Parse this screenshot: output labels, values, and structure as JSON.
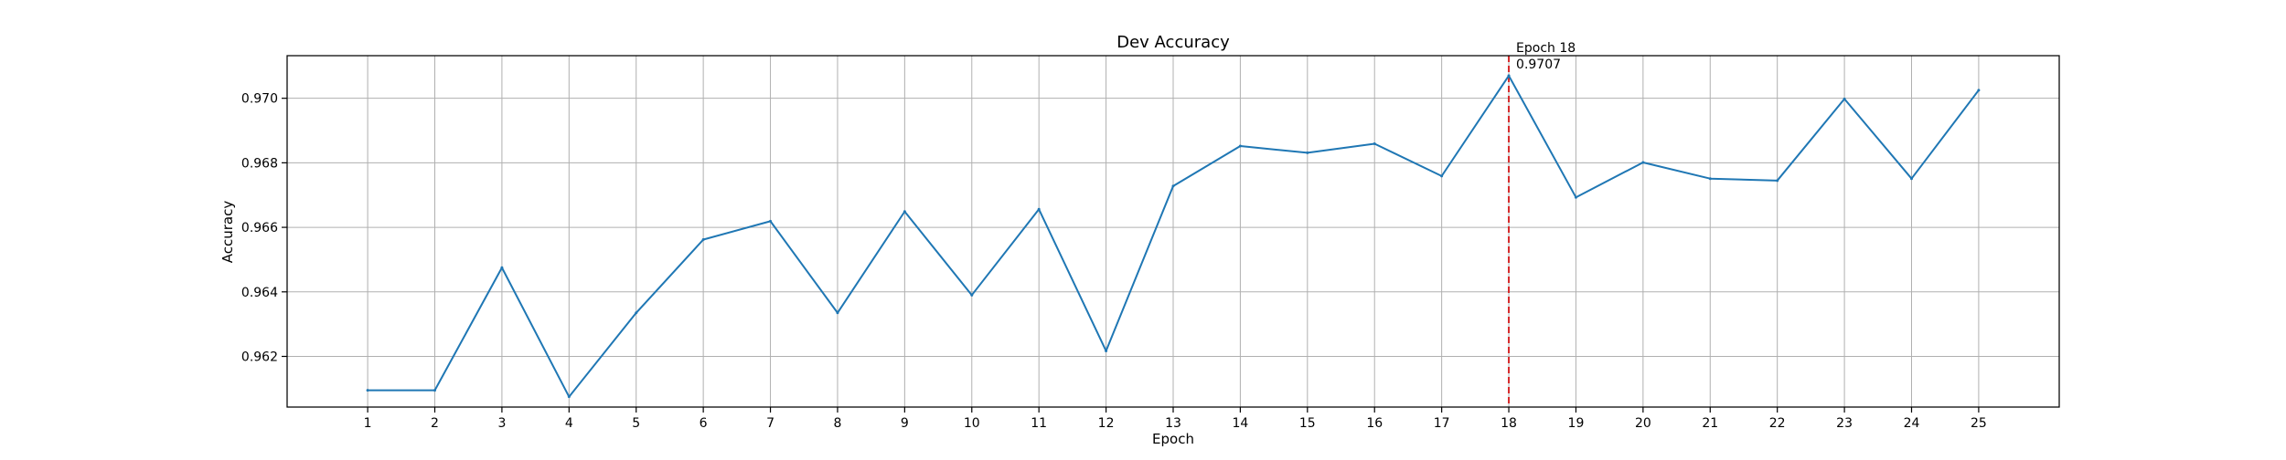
{
  "chart_data": {
    "type": "line",
    "title": "Dev Accuracy",
    "xlabel": "Epoch",
    "ylabel": "Accuracy",
    "x": [
      1,
      2,
      3,
      4,
      5,
      6,
      7,
      8,
      9,
      10,
      11,
      12,
      13,
      14,
      15,
      16,
      17,
      18,
      19,
      20,
      21,
      22,
      23,
      24,
      25
    ],
    "series": [
      {
        "values": [
          0.96095,
          0.96095,
          0.96475,
          0.96075,
          0.96335,
          0.96562,
          0.96619,
          0.96335,
          0.96649,
          0.9639,
          0.96656,
          0.96217,
          0.96728,
          0.96852,
          0.96831,
          0.96859,
          0.96759,
          0.9707,
          0.96693,
          0.96801,
          0.96751,
          0.96745,
          0.96998,
          0.96751,
          0.97025
        ],
        "color": "#1f77b4"
      }
    ],
    "xlim": [
      -0.2,
      26.2
    ],
    "ylim": [
      0.96043,
      0.97132
    ],
    "xticks": [
      1,
      2,
      3,
      4,
      5,
      6,
      7,
      8,
      9,
      10,
      11,
      12,
      13,
      14,
      15,
      16,
      17,
      18,
      19,
      20,
      21,
      22,
      23,
      24,
      25
    ],
    "xtick_labels": [
      "1",
      "2",
      "3",
      "4",
      "5",
      "6",
      "7",
      "8",
      "9",
      "10",
      "11",
      "12",
      "13",
      "14",
      "15",
      "16",
      "17",
      "18",
      "19",
      "20",
      "21",
      "22",
      "23",
      "24",
      "25"
    ],
    "yticks": [
      0.962,
      0.964,
      0.966,
      0.968,
      0.97
    ],
    "ytick_labels": [
      "0.962",
      "0.964",
      "0.966",
      "0.968",
      "0.970"
    ],
    "grid": true,
    "annotation": {
      "x": 18,
      "y": 0.9707,
      "line1": "Epoch 18",
      "line2": "0.9707",
      "line_color": "#d62728"
    }
  }
}
